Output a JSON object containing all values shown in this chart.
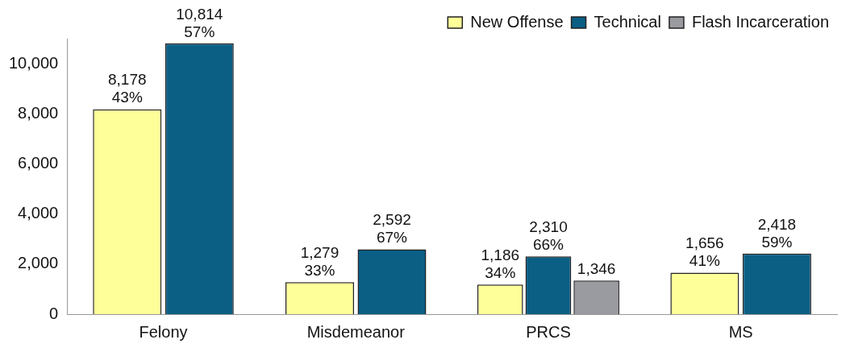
{
  "chart_data": {
    "type": "bar",
    "categories": [
      "Felony",
      "Misdemeanor",
      "PRCS",
      "MS"
    ],
    "series": [
      {
        "name": "New Offense",
        "color": "#ffff99",
        "values": [
          8178,
          1279,
          1186,
          1656
        ],
        "value_labels": [
          "8,178\n43%",
          "1,279\n33%",
          "1,186\n34%",
          "1,656\n41%"
        ]
      },
      {
        "name": "Technical",
        "color": "#0b5f85",
        "values": [
          10814,
          2592,
          2310,
          2418
        ],
        "value_labels": [
          "10,814\n57%",
          "2,592\n67%",
          "2,310\n66%",
          "2,418\n59%"
        ]
      },
      {
        "name": "Flash Incarceration",
        "color": "#9a9ba0",
        "values": [
          null,
          null,
          1346,
          null
        ],
        "value_labels": [
          null,
          null,
          "1,346",
          null
        ]
      }
    ],
    "ylim": [
      0,
      11000
    ],
    "yticks": [
      0,
      {
        "value": 2000,
        "label": "2,000"
      },
      {
        "value": 4000,
        "label": "4,000"
      },
      {
        "value": 6000,
        "label": "6,000"
      },
      {
        "value": 8000,
        "label": "8,000"
      },
      {
        "value": 10000,
        "label": "10,000"
      }
    ],
    "grid": false,
    "legend": "top right"
  }
}
